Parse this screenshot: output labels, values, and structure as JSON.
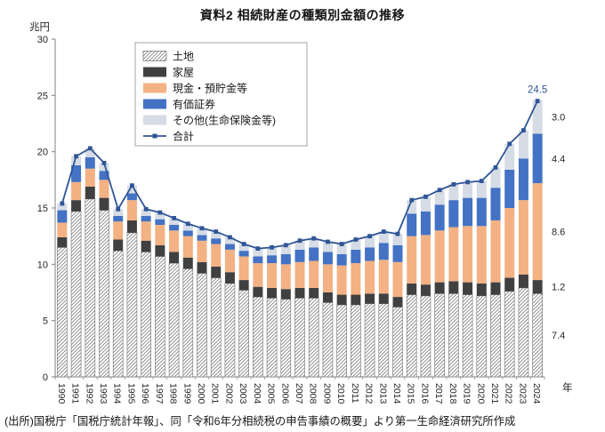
{
  "title": "資料2 相続財産の種類別金額の推移",
  "source": "(出所)国税庁「国税庁統計年報」、同「令和6年分相続税の申告事績の概要」より第一生命経済研究所作成",
  "chart_data": {
    "type": "bar",
    "stacked": true,
    "stack_order": "bottom-to-top",
    "title": "資料2 相続財産の種類別金額の推移",
    "unit_label": "兆円",
    "x_axis_suffix": "年",
    "ylim": [
      0,
      30
    ],
    "yticks": [
      0,
      5,
      10,
      15,
      20,
      25,
      30
    ],
    "legend_position": "top-left-inside",
    "categories": [
      "1990",
      "1991",
      "1992",
      "1993",
      "1994",
      "1995",
      "1996",
      "1997",
      "1998",
      "1999",
      "2000",
      "2001",
      "2002",
      "2003",
      "2004",
      "2005",
      "2006",
      "2007",
      "2008",
      "2009",
      "2010",
      "2011",
      "2012",
      "2013",
      "2014",
      "2015",
      "2016",
      "2017",
      "2018",
      "2019",
      "2020",
      "2021",
      "2022",
      "2023",
      "2024"
    ],
    "series": [
      {
        "key": "land",
        "name": "土地",
        "type": "bar",
        "style": "hatch",
        "color": "#808080",
        "values": [
          11.5,
          14.7,
          15.8,
          14.8,
          11.2,
          12.8,
          11.1,
          10.7,
          10.1,
          9.6,
          9.2,
          8.8,
          8.3,
          7.7,
          7.1,
          7.0,
          6.9,
          7.0,
          7.0,
          6.6,
          6.4,
          6.4,
          6.5,
          6.5,
          6.2,
          7.3,
          7.2,
          7.4,
          7.4,
          7.3,
          7.2,
          7.3,
          7.6,
          7.9,
          7.4
        ]
      },
      {
        "key": "house",
        "name": "家屋",
        "type": "bar",
        "color": "#404040",
        "values": [
          0.9,
          1.0,
          1.1,
          1.1,
          1.0,
          1.1,
          1.0,
          1.0,
          1.0,
          1.0,
          1.0,
          1.0,
          1.0,
          0.9,
          0.9,
          0.9,
          0.9,
          0.9,
          0.9,
          0.9,
          0.9,
          0.9,
          0.9,
          0.9,
          0.9,
          1.0,
          1.0,
          1.0,
          1.1,
          1.1,
          1.1,
          1.1,
          1.2,
          1.2,
          1.2
        ]
      },
      {
        "key": "cash",
        "name": "現金・預貯金等",
        "type": "bar",
        "color": "#F4B183",
        "values": [
          1.3,
          1.6,
          1.6,
          1.6,
          1.6,
          1.8,
          1.7,
          1.8,
          1.9,
          1.9,
          1.9,
          2.0,
          2.0,
          2.1,
          2.1,
          2.2,
          2.2,
          2.3,
          2.4,
          2.5,
          2.6,
          2.8,
          2.9,
          3.0,
          3.1,
          4.2,
          4.4,
          4.6,
          4.8,
          5.0,
          5.1,
          5.5,
          6.2,
          6.6,
          8.6
        ]
      },
      {
        "key": "securities",
        "name": "有価証券",
        "type": "bar",
        "color": "#4472C4",
        "values": [
          1.1,
          1.5,
          1.0,
          0.8,
          0.5,
          0.6,
          0.5,
          0.5,
          0.5,
          0.5,
          0.5,
          0.5,
          0.5,
          0.5,
          0.6,
          0.7,
          0.9,
          1.1,
          1.2,
          1.1,
          1.0,
          1.2,
          1.2,
          1.5,
          1.5,
          2.0,
          2.1,
          2.3,
          2.4,
          2.5,
          2.5,
          2.9,
          3.4,
          3.7,
          4.4
        ]
      },
      {
        "key": "other",
        "name": "その他(生命保険金等)",
        "type": "bar",
        "color": "#D6DCE5",
        "values": [
          0.6,
          0.8,
          0.8,
          0.7,
          0.6,
          0.7,
          0.6,
          0.6,
          0.6,
          0.6,
          0.6,
          0.6,
          0.6,
          0.6,
          0.7,
          0.7,
          0.8,
          0.8,
          0.8,
          0.9,
          0.9,
          0.9,
          1.0,
          1.0,
          1.0,
          1.2,
          1.3,
          1.3,
          1.4,
          1.4,
          1.5,
          1.8,
          2.3,
          2.5,
          3.0
        ]
      },
      {
        "key": "total",
        "name": "合計",
        "type": "line",
        "color": "#2F5597",
        "values": [
          15.4,
          19.6,
          20.3,
          19.0,
          14.9,
          17.0,
          14.9,
          14.6,
          14.1,
          13.6,
          13.2,
          12.9,
          12.4,
          11.8,
          11.4,
          11.5,
          11.7,
          12.1,
          12.3,
          12.0,
          11.8,
          12.2,
          12.5,
          12.9,
          12.7,
          15.7,
          16.0,
          16.6,
          17.1,
          17.3,
          17.4,
          18.6,
          20.7,
          21.9,
          24.5
        ]
      }
    ],
    "annotations": {
      "total_label": {
        "text": "24.5",
        "category": "2024"
      },
      "right_labels": [
        {
          "text": "3.0",
          "series": "other"
        },
        {
          "text": "4.4",
          "series": "securities"
        },
        {
          "text": "8.6",
          "series": "cash"
        },
        {
          "text": "1.2",
          "series": "house"
        },
        {
          "text": "7.4",
          "series": "land"
        }
      ]
    }
  }
}
